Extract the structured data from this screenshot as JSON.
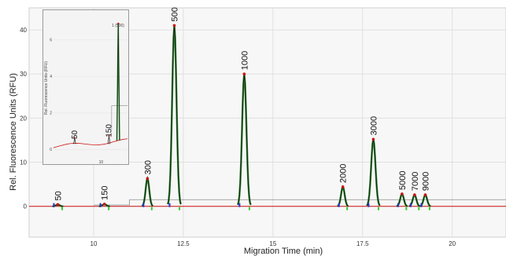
{
  "chart_data": {
    "type": "line",
    "xlabel": "Migration Time (min)",
    "ylabel": "Rel. Fluorescence Units (RFU)",
    "xlim": [
      8.2,
      21.5
    ],
    "ylim": [
      -7,
      45
    ],
    "xticks": [
      10,
      12.5,
      15,
      17.5,
      20
    ],
    "xtick_labels": [
      "10",
      "12.5",
      "15",
      "17.5",
      "20"
    ],
    "yticks": [
      0,
      10,
      20,
      30,
      40
    ],
    "ytick_labels": [
      "0",
      "10",
      "20",
      "30",
      "40"
    ],
    "grid": true,
    "series_color": "#cc1111",
    "fit_color": "#2a8a2a",
    "peaks": [
      {
        "label": "50",
        "x": 9.0,
        "y": 0.4
      },
      {
        "label": "150",
        "x": 10.3,
        "y": 0.5
      },
      {
        "label": "300",
        "x": 11.5,
        "y": 6.3
      },
      {
        "label": "500",
        "x": 12.25,
        "y": 41.0
      },
      {
        "label": "1000",
        "x": 14.2,
        "y": 30.0
      },
      {
        "label": "2000",
        "x": 16.95,
        "y": 4.4
      },
      {
        "label": "3000",
        "x": 17.8,
        "y": 15.2
      },
      {
        "label": "5000",
        "x": 18.6,
        "y": 2.8
      },
      {
        "label": "7000",
        "x": 18.95,
        "y": 2.6
      },
      {
        "label": "9000",
        "x": 19.25,
        "y": 2.6
      }
    ],
    "inset": {
      "ylabel": "Rel. Fluorescence Units (RFU)",
      "xtick_labels": [
        "10"
      ],
      "ytick_labels": [
        "0",
        "2",
        "4",
        "6"
      ],
      "peak_annotation": "1 (500)",
      "peaks": [
        {
          "label": "50",
          "x": 9.0,
          "y": 0.4
        },
        {
          "label": "150",
          "x": 10.3,
          "y": 0.5
        }
      ]
    }
  }
}
